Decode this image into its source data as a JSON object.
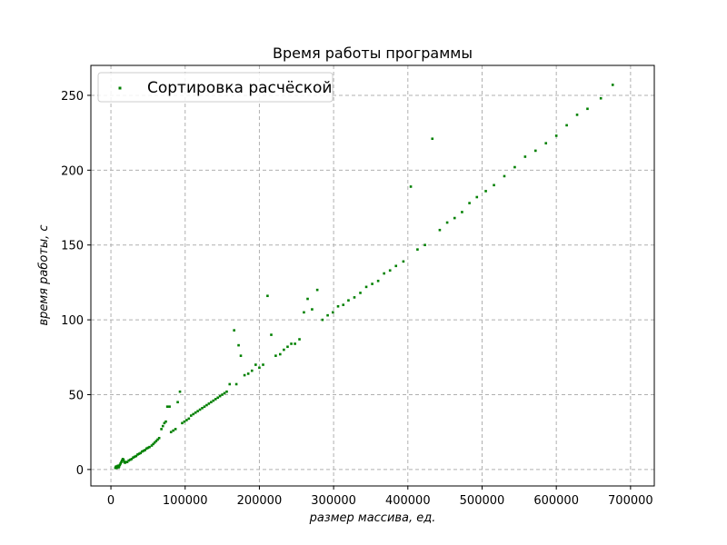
{
  "chart_data": {
    "type": "scatter",
    "title": "Время работы программы",
    "xlabel": "размер массива, ед.",
    "ylabel": "время работы, с",
    "xlim": [
      -27000,
      732000
    ],
    "ylim": [
      -11,
      270
    ],
    "xticks": [
      0,
      100000,
      200000,
      300000,
      400000,
      500000,
      600000,
      700000
    ],
    "xtick_labels": [
      "0",
      "100000",
      "200000",
      "300000",
      "400000",
      "500000",
      "600000",
      "700000"
    ],
    "yticks": [
      0,
      50,
      100,
      150,
      200,
      250
    ],
    "ytick_labels": [
      "0",
      "50",
      "100",
      "150",
      "200",
      "250"
    ],
    "grid": true,
    "legend": {
      "position": "top-left",
      "entries": [
        "Сортировка расчёской"
      ]
    },
    "series": [
      {
        "name": "Сортировка расчёской",
        "color": "#008000",
        "points": [
          [
            6000,
            1
          ],
          [
            6500,
            1.5
          ],
          [
            7000,
            2
          ],
          [
            7500,
            1
          ],
          [
            8000,
            1.5
          ],
          [
            8500,
            2
          ],
          [
            9000,
            1.5
          ],
          [
            9500,
            2.5
          ],
          [
            10000,
            2
          ],
          [
            10500,
            1.5
          ],
          [
            11000,
            2
          ],
          [
            12000,
            3
          ],
          [
            13000,
            4
          ],
          [
            14000,
            5
          ],
          [
            15000,
            6
          ],
          [
            16000,
            7
          ],
          [
            17000,
            6.5
          ],
          [
            18000,
            5
          ],
          [
            19000,
            4.5
          ],
          [
            20000,
            5
          ],
          [
            22000,
            5
          ],
          [
            24000,
            6
          ],
          [
            26000,
            6.5
          ],
          [
            28000,
            7
          ],
          [
            30000,
            8
          ],
          [
            32000,
            8.5
          ],
          [
            34000,
            9
          ],
          [
            36000,
            10
          ],
          [
            38000,
            10.5
          ],
          [
            40000,
            11
          ],
          [
            42000,
            12
          ],
          [
            44000,
            12.5
          ],
          [
            46000,
            13
          ],
          [
            48000,
            14
          ],
          [
            50000,
            14.5
          ],
          [
            52000,
            15
          ],
          [
            55000,
            16
          ],
          [
            57000,
            17
          ],
          [
            59000,
            18
          ],
          [
            61000,
            19
          ],
          [
            63000,
            20
          ],
          [
            65000,
            21
          ],
          [
            68000,
            27
          ],
          [
            70000,
            29
          ],
          [
            72000,
            31
          ],
          [
            74000,
            32
          ],
          [
            76000,
            42
          ],
          [
            79000,
            42
          ],
          [
            81000,
            25
          ],
          [
            84000,
            26
          ],
          [
            87000,
            27
          ],
          [
            90000,
            45
          ],
          [
            93000,
            52
          ],
          [
            96000,
            31
          ],
          [
            99000,
            32
          ],
          [
            102000,
            33
          ],
          [
            105000,
            34
          ],
          [
            108000,
            36
          ],
          [
            111000,
            37
          ],
          [
            114000,
            38
          ],
          [
            117000,
            39
          ],
          [
            120000,
            40
          ],
          [
            123000,
            41
          ],
          [
            126000,
            42
          ],
          [
            129000,
            43
          ],
          [
            132000,
            44
          ],
          [
            135000,
            45
          ],
          [
            138000,
            46
          ],
          [
            141000,
            47
          ],
          [
            144000,
            48
          ],
          [
            147000,
            49
          ],
          [
            150000,
            50
          ],
          [
            153000,
            51
          ],
          [
            156000,
            52
          ],
          [
            160000,
            57
          ],
          [
            166000,
            93
          ],
          [
            169000,
            57
          ],
          [
            172000,
            83
          ],
          [
            175000,
            76
          ],
          [
            180000,
            63
          ],
          [
            185000,
            64
          ],
          [
            190000,
            66
          ],
          [
            195000,
            70
          ],
          [
            200000,
            68
          ],
          [
            205000,
            70
          ],
          [
            211000,
            116
          ],
          [
            216000,
            90
          ],
          [
            222000,
            76
          ],
          [
            228000,
            77
          ],
          [
            233000,
            80
          ],
          [
            238000,
            82
          ],
          [
            243000,
            84
          ],
          [
            248000,
            84
          ],
          [
            254000,
            87
          ],
          [
            260000,
            105
          ],
          [
            265000,
            114
          ],
          [
            271000,
            107
          ],
          [
            278000,
            120
          ],
          [
            285000,
            100
          ],
          [
            292000,
            103
          ],
          [
            299000,
            105
          ],
          [
            306000,
            109
          ],
          [
            313000,
            110
          ],
          [
            320000,
            113
          ],
          [
            328000,
            115
          ],
          [
            336000,
            118
          ],
          [
            344000,
            122
          ],
          [
            352000,
            124
          ],
          [
            360000,
            126
          ],
          [
            368000,
            131
          ],
          [
            376000,
            133
          ],
          [
            384000,
            136
          ],
          [
            394000,
            139
          ],
          [
            404000,
            189
          ],
          [
            413000,
            147
          ],
          [
            423000,
            150
          ],
          [
            433000,
            221
          ],
          [
            443000,
            160
          ],
          [
            453000,
            165
          ],
          [
            463000,
            168
          ],
          [
            473000,
            172
          ],
          [
            483000,
            178
          ],
          [
            493000,
            182
          ],
          [
            505000,
            186
          ],
          [
            516000,
            190
          ],
          [
            530000,
            196
          ],
          [
            544000,
            202
          ],
          [
            558000,
            209
          ],
          [
            572000,
            213
          ],
          [
            586000,
            218
          ],
          [
            600000,
            223
          ],
          [
            614000,
            230
          ],
          [
            628000,
            237
          ],
          [
            642000,
            241
          ],
          [
            660000,
            248
          ],
          [
            676000,
            257
          ]
        ]
      }
    ]
  }
}
